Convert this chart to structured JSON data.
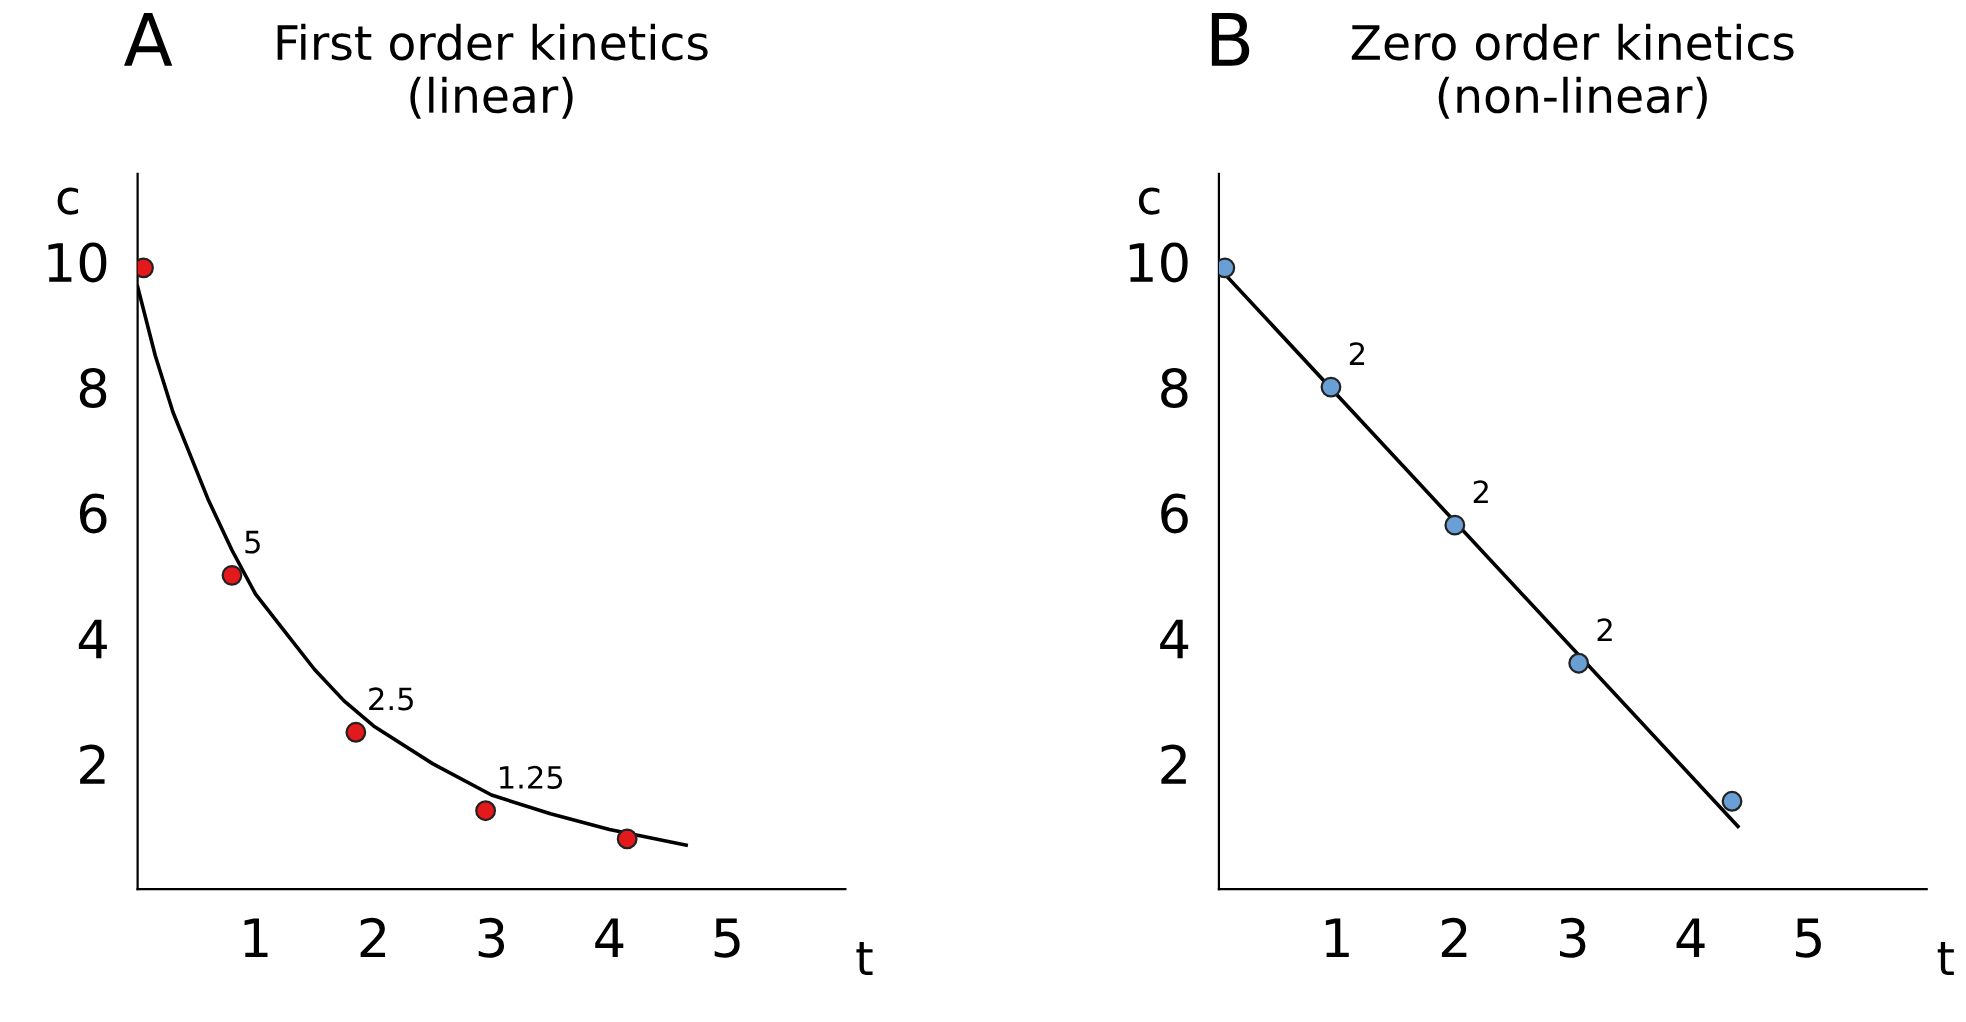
{
  "chart_data": [
    {
      "type": "scatter",
      "title": "First order kinetics\n(linear)",
      "xlabel": "t",
      "ylabel": "c",
      "annotations": [
        "A"
      ],
      "xlim": [
        0,
        6
      ],
      "ylim": [
        0,
        11.4
      ],
      "xticks": [
        1,
        2,
        3,
        4,
        5
      ],
      "yticks": [
        2,
        4,
        6,
        8,
        10
      ],
      "grid": false,
      "legend": false,
      "marker": "circle",
      "series": [
        {
          "type": "line",
          "color": "#000000",
          "x": [
            0,
            0.15,
            0.3,
            0.45,
            0.6,
            0.8,
            1,
            1.25,
            1.5,
            1.75,
            2,
            2.5,
            3,
            3.5,
            4,
            4.65
          ],
          "values": [
            9.6,
            8.5,
            7.6,
            6.9,
            6.2,
            5.4,
            4.7,
            4.1,
            3.5,
            3.0,
            2.6,
            2.0,
            1.5,
            1.2,
            0.95,
            0.7
          ],
          "marker": "none"
        },
        {
          "color": "#e3191c",
          "x": [
            0.05,
            0.8,
            1.85,
            2.95,
            4.15
          ],
          "values": [
            9.9,
            5,
            2.5,
            1.25,
            0.8
          ],
          "value_labels": [
            null,
            "5",
            "2.5",
            "1.25",
            null
          ]
        }
      ]
    },
    {
      "type": "scatter",
      "title": "Zero order kinetics\n(non-linear)",
      "xlabel": "t",
      "ylabel": "c",
      "annotations": [
        "B",
        "2",
        "2",
        "2"
      ],
      "xlim": [
        0,
        6
      ],
      "ylim": [
        0,
        11.4
      ],
      "xticks": [
        1,
        2,
        3,
        4,
        5
      ],
      "yticks": [
        2,
        4,
        6,
        8,
        10
      ],
      "grid": false,
      "legend": false,
      "marker": "circle",
      "series": [
        {
          "type": "line",
          "color": "#000000",
          "x": [
            0.05,
            4.4
          ],
          "values": [
            9.8,
            1.0
          ],
          "marker": "none"
        },
        {
          "color": "#6a9fd6",
          "x": [
            0.05,
            0.95,
            2.0,
            3.05,
            4.35
          ],
          "values": [
            9.9,
            8.0,
            5.8,
            3.6,
            1.4
          ]
        }
      ]
    }
  ]
}
